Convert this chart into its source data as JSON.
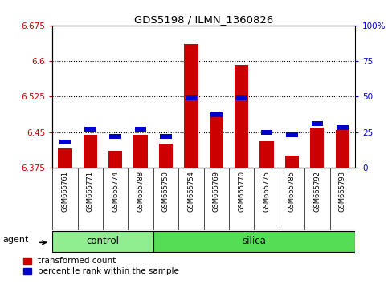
{
  "title": "GDS5198 / ILMN_1360826",
  "samples": [
    "GSM665761",
    "GSM665771",
    "GSM665774",
    "GSM665788",
    "GSM665750",
    "GSM665754",
    "GSM665769",
    "GSM665770",
    "GSM665775",
    "GSM665785",
    "GSM665792",
    "GSM665793"
  ],
  "groups": [
    "control",
    "control",
    "control",
    "control",
    "silica",
    "silica",
    "silica",
    "silica",
    "silica",
    "silica",
    "silica",
    "silica"
  ],
  "red_values": [
    6.415,
    6.445,
    6.41,
    6.445,
    6.425,
    6.635,
    6.487,
    6.592,
    6.43,
    6.4,
    6.46,
    6.455
  ],
  "blue_pcts": [
    18,
    27,
    22,
    27,
    22,
    49,
    37,
    49,
    25,
    23,
    31,
    28
  ],
  "ylim_left": [
    6.375,
    6.675
  ],
  "ylim_right": [
    0,
    100
  ],
  "yticks_left": [
    6.375,
    6.45,
    6.525,
    6.6,
    6.675
  ],
  "yticks_right": [
    0,
    25,
    50,
    75,
    100
  ],
  "ytick_labels_left": [
    "6.375",
    "6.45",
    "6.525",
    "6.6",
    "6.675"
  ],
  "ytick_labels_right": [
    "0",
    "25",
    "50",
    "75",
    "100%"
  ],
  "hlines": [
    6.45,
    6.525,
    6.6
  ],
  "bar_bottom": 6.375,
  "red_color": "#cc0000",
  "blue_color": "#0000cc",
  "control_color": "#90ee90",
  "silica_color": "#55dd55",
  "bg_color": "#d0d0d0",
  "legend_red": "transformed count",
  "legend_blue": "percentile rank within the sample",
  "agent_label": "agent",
  "group_labels": [
    "control",
    "silica"
  ],
  "n_control": 4,
  "n_silica": 8
}
